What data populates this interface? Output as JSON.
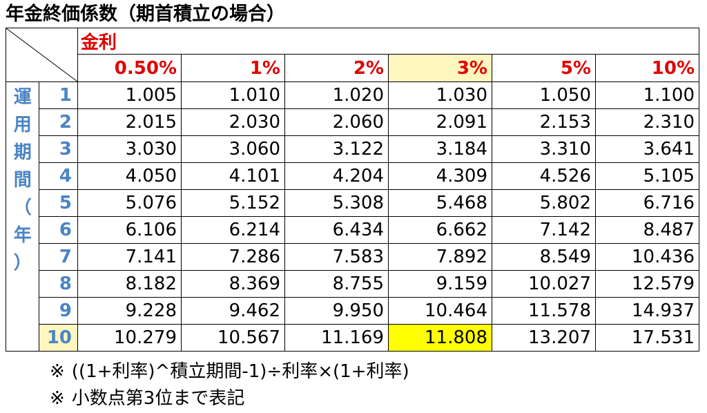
{
  "title": "年金終価係数（期首積立の場合）",
  "rate_label": "金利",
  "period_label_chars": [
    "運",
    "用",
    "期",
    "間",
    "（",
    "年",
    "）"
  ],
  "rates": [
    "0.50%",
    "1%",
    "2%",
    "3%",
    "5%",
    "10%"
  ],
  "highlight": {
    "rate": "3%",
    "year": "10",
    "color_cell": "#ffff00",
    "color_header": "#fff6c0"
  },
  "rows": [
    {
      "year": "1",
      "values": [
        "1.005",
        "1.010",
        "1.020",
        "1.030",
        "1.050",
        "1.100"
      ]
    },
    {
      "year": "2",
      "values": [
        "2.015",
        "2.030",
        "2.060",
        "2.091",
        "2.153",
        "2.310"
      ]
    },
    {
      "year": "3",
      "values": [
        "3.030",
        "3.060",
        "3.122",
        "3.184",
        "3.310",
        "3.641"
      ]
    },
    {
      "year": "4",
      "values": [
        "4.050",
        "4.101",
        "4.204",
        "4.309",
        "4.526",
        "5.105"
      ]
    },
    {
      "year": "5",
      "values": [
        "5.076",
        "5.152",
        "5.308",
        "5.468",
        "5.802",
        "6.716"
      ]
    },
    {
      "year": "6",
      "values": [
        "6.106",
        "6.214",
        "6.434",
        "6.662",
        "7.142",
        "8.487"
      ]
    },
    {
      "year": "7",
      "values": [
        "7.141",
        "7.286",
        "7.583",
        "7.892",
        "8.549",
        "10.436"
      ]
    },
    {
      "year": "8",
      "values": [
        "8.182",
        "8.369",
        "8.755",
        "9.159",
        "10.027",
        "12.579"
      ]
    },
    {
      "year": "9",
      "values": [
        "9.228",
        "9.462",
        "9.950",
        "10.464",
        "11.578",
        "14.937"
      ]
    },
    {
      "year": "10",
      "values": [
        "10.279",
        "10.567",
        "11.169",
        "11.808",
        "13.207",
        "17.531"
      ]
    }
  ],
  "notes": {
    "mark": "※",
    "formula": "((1+利率)^積立期間-1)÷利率×(1+利率)",
    "precision": "小数点第3位まで表記"
  }
}
